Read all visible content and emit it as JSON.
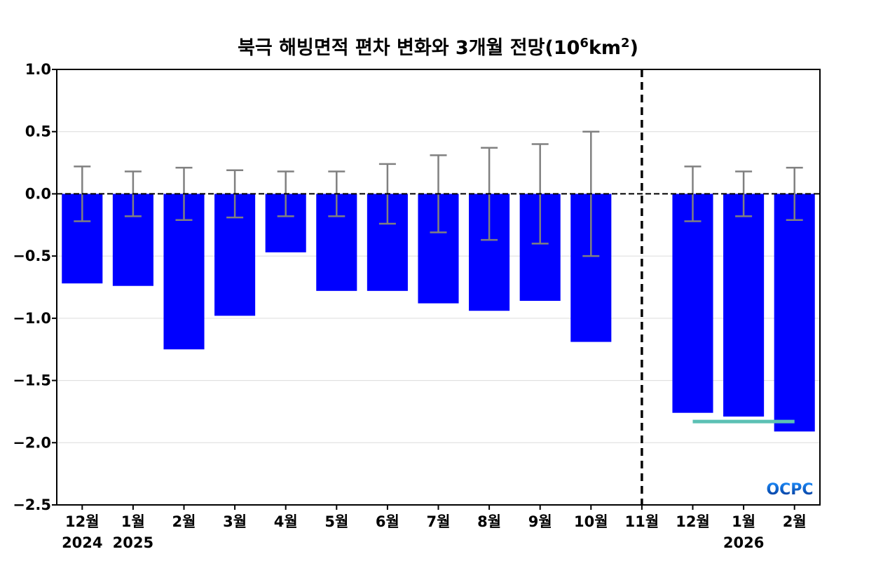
{
  "chart_data": {
    "type": "bar",
    "title": "북극 해빙면적 편차 변화와 3개월 전망(10",
    "title_exponent": "6",
    "title_unit": "km",
    "title_unit_exponent": "2",
    "title_close": ")",
    "xlabel": "",
    "ylabel": "",
    "ylim": [
      -2.5,
      1.0
    ],
    "yticks": [
      1.0,
      0.5,
      0.0,
      -0.5,
      -1.0,
      -1.5,
      -2.0,
      -2.5
    ],
    "ytick_labels": [
      "1.0",
      "0.5",
      "0.0",
      "−0.5",
      "−1.0",
      "−1.5",
      "−2.0",
      "−2.5"
    ],
    "grid": "horizontal",
    "categories": [
      "12월",
      "1월",
      "2월",
      "3월",
      "4월",
      "5월",
      "6월",
      "7월",
      "8월",
      "9월",
      "10월",
      "11월",
      "12월",
      "1월",
      "2월"
    ],
    "year_labels": [
      {
        "index": 0,
        "text": "2024"
      },
      {
        "index": 1,
        "text": "2025"
      },
      {
        "index": 13,
        "text": "2026"
      }
    ],
    "values": [
      -0.72,
      -0.74,
      -1.25,
      -0.98,
      -0.47,
      -0.78,
      -0.78,
      -0.88,
      -0.94,
      -0.86,
      -1.19,
      null,
      -1.76,
      -1.79,
      -1.91
    ],
    "error_bars": [
      0.22,
      0.18,
      0.21,
      0.19,
      0.18,
      0.18,
      0.24,
      0.31,
      0.37,
      0.4,
      0.5,
      null,
      0.22,
      0.18,
      0.21
    ],
    "forecast_divider_index": 11,
    "reference_line": {
      "from_index": 12,
      "to_index": 14,
      "value": -1.83
    },
    "colors": {
      "bar": "#0000ff",
      "error_bar": "#808080",
      "zero_line": "#000000",
      "divider": "#000000",
      "reference_line": "#5bc0b4",
      "grid": "#dcdcdc"
    }
  },
  "logo": {
    "text": "OCPC",
    "color_top": "#1e90ff",
    "color_bottom": "#00308f"
  }
}
